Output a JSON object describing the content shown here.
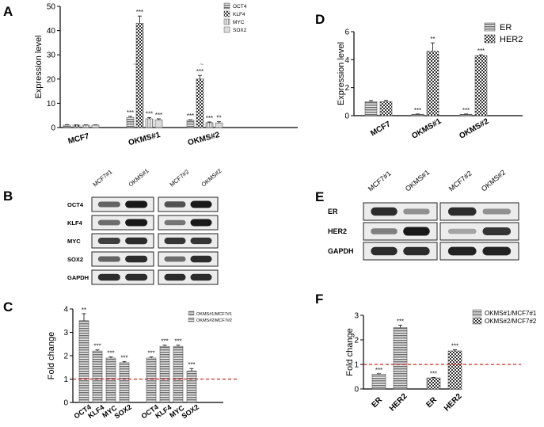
{
  "panels": {
    "a": {
      "letter": "A"
    },
    "b": {
      "letter": "B"
    },
    "c": {
      "letter": "C"
    },
    "d": {
      "letter": "D"
    },
    "e": {
      "letter": "E"
    },
    "f": {
      "letter": "F"
    }
  },
  "chart_data": [
    {
      "id": "A",
      "type": "bar",
      "ylabel": "Expression level",
      "ylim": [
        0,
        50
      ],
      "yticks": [
        "0",
        "10",
        "20",
        "30",
        "40",
        "50"
      ],
      "axis_breaks": [
        "~",
        "~",
        "~"
      ],
      "categories": [
        "MCF7",
        "OKMS#1",
        "OKMS#2"
      ],
      "series": [
        {
          "name": "OCT4",
          "values": [
            1.0,
            4.2,
            3.0
          ],
          "errors": [
            0.2,
            0.4,
            0.2
          ],
          "sig": [
            "",
            "***",
            "***"
          ],
          "pattern": "hlines",
          "color": "#7d7d7d"
        },
        {
          "name": "KLF4",
          "values": [
            1.0,
            43.0,
            20.0
          ],
          "errors": [
            0.1,
            3.0,
            1.5
          ],
          "sig": [
            "",
            "***",
            "***"
          ],
          "pattern": "checker",
          "color": "#9a9a9a"
        },
        {
          "name": "MYC",
          "values": [
            1.0,
            3.6,
            2.0
          ],
          "errors": [
            0.1,
            0.5,
            0.3
          ],
          "sig": [
            "",
            "***",
            "***"
          ],
          "pattern": "vlines",
          "color": "#c4c4c4"
        },
        {
          "name": "SOX2",
          "values": [
            1.0,
            3.2,
            1.9
          ],
          "errors": [
            0.1,
            0.4,
            0.5
          ],
          "sig": [
            "",
            "***",
            "**"
          ],
          "pattern": "solid",
          "color": "#d8d8d8"
        }
      ]
    },
    {
      "id": "C",
      "type": "bar",
      "ylabel": "Fold change",
      "ylim": [
        0,
        4
      ],
      "yticks": [
        "0",
        "1",
        "2",
        "3",
        "4"
      ],
      "reference_line": 1,
      "categories": [
        "OCT4",
        "KLF4",
        "MYC",
        "SOX2",
        "OCT4",
        "KLF4",
        "MYC",
        "SOX2"
      ],
      "bar_series": [
        0,
        0,
        0,
        0,
        1,
        1,
        1,
        1
      ],
      "values": [
        3.5,
        2.2,
        1.9,
        1.7,
        1.9,
        2.4,
        2.4,
        1.35
      ],
      "errors": [
        0.3,
        0.05,
        0.05,
        0.05,
        0.05,
        0.05,
        0.05,
        0.1
      ],
      "sig": [
        "**",
        "***",
        "***",
        "***",
        "***",
        "***",
        "***",
        "***"
      ],
      "series": [
        {
          "name": "OKMS#1/MCF7#1",
          "pattern": "hlines",
          "color": "#666666"
        },
        {
          "name": "OKMS#2/MCF7#2",
          "pattern": "hlines",
          "color": "#9a9a9a"
        }
      ]
    },
    {
      "id": "D",
      "type": "bar",
      "ylabel": "Expression level",
      "ylim": [
        0,
        6
      ],
      "yticks": [
        "0",
        "2",
        "4",
        "6"
      ],
      "categories": [
        "MCF7",
        "OKMS#1",
        "OKMS#2"
      ],
      "series": [
        {
          "name": "ER",
          "values": [
            1.0,
            0.1,
            0.1
          ],
          "errors": [
            0.08,
            0.02,
            0.02
          ],
          "sig": [
            "",
            "***",
            "***"
          ],
          "pattern": "hlines",
          "color": "#777777"
        },
        {
          "name": "HER2",
          "values": [
            1.0,
            4.6,
            4.3
          ],
          "errors": [
            0.1,
            0.6,
            0.05
          ],
          "sig": [
            "",
            "**",
            "***"
          ],
          "pattern": "checker",
          "color": "#888888"
        }
      ]
    },
    {
      "id": "F",
      "type": "bar",
      "ylabel": "Fold change",
      "ylim": [
        0,
        3
      ],
      "yticks": [
        "0",
        "1",
        "2",
        "3"
      ],
      "reference_line": 1,
      "categories": [
        "ER",
        "HER2",
        "ER",
        "HER2"
      ],
      "bar_series": [
        0,
        0,
        1,
        1
      ],
      "values": [
        0.6,
        2.5,
        0.45,
        1.55
      ],
      "errors": [
        0.02,
        0.1,
        0.02,
        0.05
      ],
      "sig": [
        "***",
        "***",
        "***",
        "***"
      ],
      "series": [
        {
          "name": "OKMS#1/MCF7#1",
          "pattern": "hlines",
          "color": "#777777"
        },
        {
          "name": "OKMS#2/MCF7#2",
          "pattern": "checker",
          "color": "#888888"
        }
      ]
    }
  ],
  "blots": {
    "b": {
      "columns": [
        "MCF7#1",
        "OKMS#1",
        "MCF7#2",
        "OKMS#2"
      ],
      "rows": [
        {
          "label": "OCT4",
          "i": [
            0.6,
            1.0,
            0.7,
            1.0
          ]
        },
        {
          "label": "KLF4",
          "i": [
            0.55,
            1.0,
            0.5,
            1.0
          ]
        },
        {
          "label": "MYC",
          "i": [
            0.8,
            0.9,
            0.85,
            0.85
          ]
        },
        {
          "label": "SOX2",
          "i": [
            0.6,
            0.9,
            0.55,
            0.9
          ]
        },
        {
          "label": "GAPDH",
          "i": [
            0.9,
            0.9,
            0.9,
            0.9
          ]
        }
      ]
    },
    "e": {
      "columns": [
        "MCF7#1",
        "OKMS#1",
        "MCF7#2",
        "OKMS#2"
      ],
      "rows": [
        {
          "label": "ER",
          "i": [
            0.9,
            0.35,
            0.9,
            0.35
          ]
        },
        {
          "label": "HER2",
          "i": [
            0.45,
            1.0,
            0.25,
            0.85
          ]
        },
        {
          "label": "GAPDH",
          "i": [
            0.9,
            0.9,
            0.95,
            0.95
          ]
        }
      ]
    }
  }
}
